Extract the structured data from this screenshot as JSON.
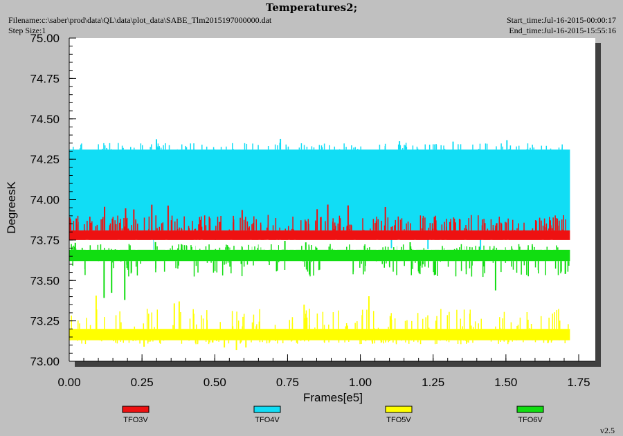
{
  "header": {
    "title": "Temperatures2;",
    "filename": "Filename:c:\\saber\\prod\\data\\QL\\data\\plot_data\\SABE_Tlm2015197000000.dat",
    "step_size": "Step Size:1",
    "start_time": "Start_time:Jul-16-2015-00:00:17",
    "end_time": "End_time:Jul-16-2015-15:55:16"
  },
  "version": "v2.5",
  "colors": {
    "background": "#c0c0c0",
    "plot_area": "#ffffff",
    "shadow": "#404040"
  },
  "chart_data": {
    "type": "line",
    "xlabel": "Frames[e5]",
    "ylabel": "DegreesK",
    "xlim": [
      0,
      1.75
    ],
    "ylim": [
      73.0,
      75.0
    ],
    "x_ticks": [
      "0.00",
      "0.25",
      "0.50",
      "0.75",
      "1.00",
      "1.25",
      "1.50",
      "1.75"
    ],
    "y_ticks": [
      "73.00",
      "73.25",
      "73.50",
      "73.75",
      "74.00",
      "74.25",
      "74.50",
      "74.75",
      "75.00"
    ],
    "grid": false,
    "legend_position": "bottom",
    "series": [
      {
        "name": "TFO3V",
        "color": "#ee1111",
        "x_range": [
          0,
          1.72
        ],
        "band": [
          73.75,
          73.81
        ],
        "spikes_high": 73.97
      },
      {
        "name": "TFO4V",
        "color": "#11ddf5",
        "x_range": [
          0,
          1.72
        ],
        "band": [
          73.81,
          74.31
        ],
        "spikes_high": 74.38,
        "spikes_low": 73.69
      },
      {
        "name": "TFO5V",
        "color": "#ffff00",
        "x_range": [
          0,
          1.72
        ],
        "band": [
          73.13,
          73.2
        ],
        "spikes_high": 73.41,
        "spikes_low": 73.06
      },
      {
        "name": "TFO6V",
        "color": "#11dd11",
        "x_range": [
          0,
          1.72
        ],
        "band": [
          73.62,
          73.69
        ],
        "spikes_high": 73.75,
        "spikes_low": 73.34
      }
    ]
  }
}
